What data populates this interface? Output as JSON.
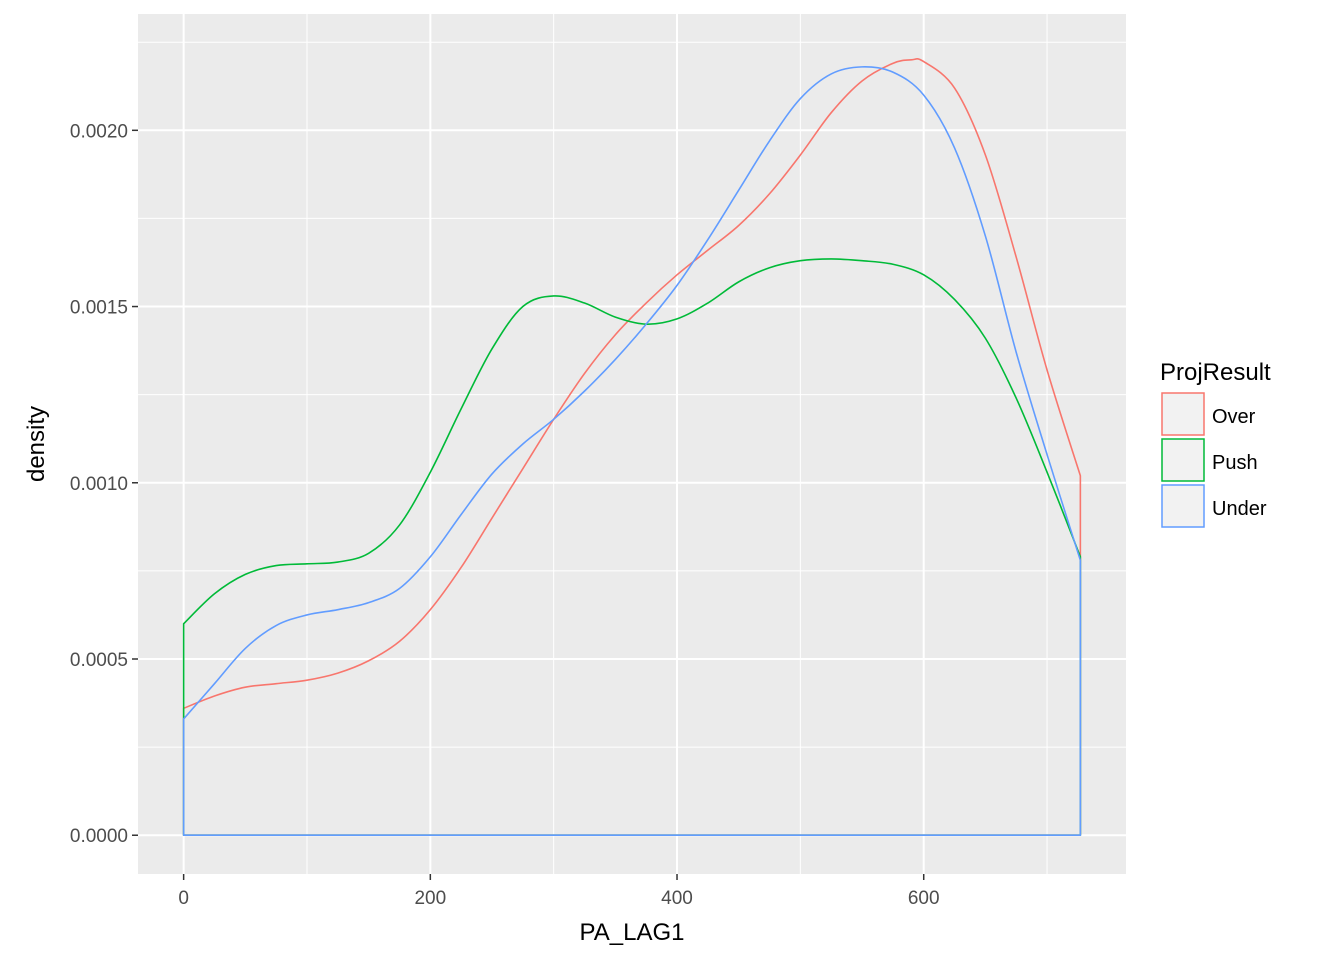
{
  "chart_data": {
    "type": "line",
    "title": "",
    "xlabel": "PA_LAG1",
    "ylabel": "density",
    "xlim": [
      -37,
      764
    ],
    "ylim": [
      -0.00011,
      0.00233
    ],
    "x_ticks": [
      0,
      200,
      400,
      600
    ],
    "y_ticks": [
      0,
      0.0005,
      0.001,
      0.0015,
      0.002
    ],
    "x_tick_labels": [
      "0",
      "200",
      "400",
      "600"
    ],
    "y_tick_labels": [
      "0.0000",
      "0.0005",
      "0.0010",
      "0.0015",
      "0.0020"
    ],
    "grid": true,
    "background": "#ebebeb",
    "legend": {
      "title": "ProjResult",
      "position": "right",
      "entries": [
        "Over",
        "Push",
        "Under"
      ]
    },
    "series": [
      {
        "name": "Over",
        "color": "#F8766D",
        "x": [
          0,
          25,
          50,
          75,
          100,
          125,
          150,
          175,
          200,
          225,
          250,
          275,
          300,
          325,
          350,
          375,
          400,
          425,
          450,
          475,
          500,
          525,
          550,
          575,
          590,
          600,
          625,
          650,
          675,
          700,
          727
        ],
        "y": [
          0.00036,
          0.000395,
          0.00042,
          0.00043,
          0.00044,
          0.00046,
          0.000495,
          0.00055,
          0.00064,
          0.00076,
          0.0009,
          0.00104,
          0.00118,
          0.00131,
          0.00142,
          0.00151,
          0.00159,
          0.00166,
          0.00173,
          0.00182,
          0.00193,
          0.00205,
          0.00214,
          0.00219,
          0.0022,
          0.002195,
          0.00212,
          0.00193,
          0.00164,
          0.00132,
          0.00102
        ]
      },
      {
        "name": "Push",
        "color": "#00BA38",
        "x": [
          0,
          25,
          50,
          75,
          100,
          125,
          150,
          175,
          200,
          225,
          250,
          275,
          300,
          325,
          350,
          375,
          400,
          425,
          450,
          475,
          500,
          525,
          550,
          575,
          600,
          625,
          650,
          675,
          700,
          727
        ],
        "y": [
          0.0006,
          0.000685,
          0.00074,
          0.000765,
          0.00077,
          0.000775,
          0.0008,
          0.00088,
          0.00103,
          0.00121,
          0.00138,
          0.0015,
          0.00153,
          0.00151,
          0.00147,
          0.00145,
          0.001465,
          0.00151,
          0.00157,
          0.00161,
          0.00163,
          0.001635,
          0.00163,
          0.00162,
          0.00159,
          0.00152,
          0.00141,
          0.00124,
          0.00103,
          0.00079
        ]
      },
      {
        "name": "Under",
        "color": "#619CFF",
        "x": [
          0,
          25,
          50,
          75,
          100,
          125,
          150,
          175,
          200,
          225,
          250,
          275,
          300,
          325,
          350,
          375,
          400,
          425,
          450,
          475,
          500,
          525,
          550,
          575,
          600,
          625,
          650,
          675,
          700,
          727
        ],
        "y": [
          0.00033,
          0.00043,
          0.00053,
          0.000595,
          0.000625,
          0.00064,
          0.00066,
          0.0007,
          0.00079,
          0.00091,
          0.001025,
          0.00111,
          0.00118,
          0.00126,
          0.00135,
          0.00145,
          0.00156,
          0.00169,
          0.00183,
          0.00197,
          0.00209,
          0.00216,
          0.00218,
          0.002165,
          0.0021,
          0.00195,
          0.0017,
          0.00137,
          0.00108,
          0.00078
        ]
      }
    ]
  }
}
